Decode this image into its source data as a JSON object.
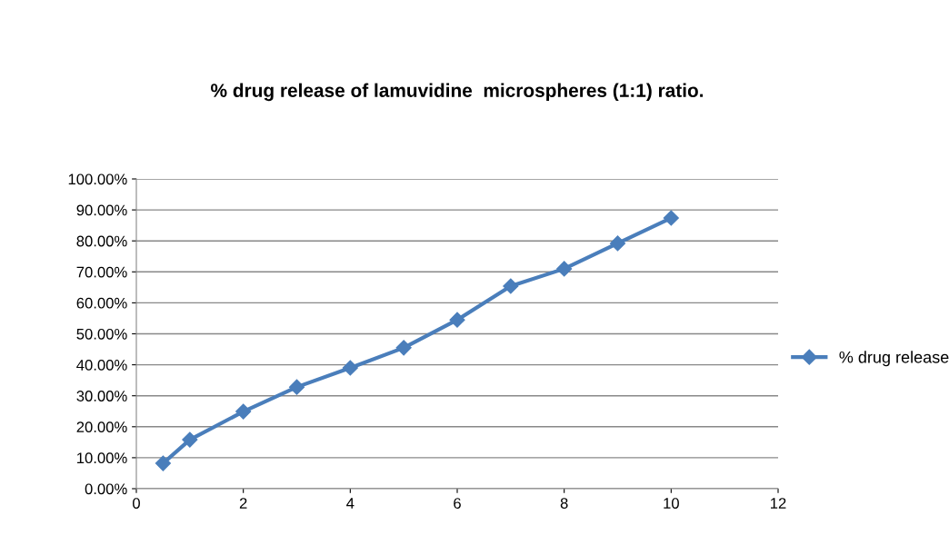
{
  "chart_data": {
    "type": "line",
    "title": "% drug release of lamuvidine  microspheres (1:1) ratio.",
    "x": [
      0.5,
      1,
      2,
      3,
      4,
      5,
      6,
      7,
      8,
      9,
      10
    ],
    "series": [
      {
        "name": "% drug release",
        "color": "#4a7ebb",
        "values": [
          8.2,
          15.8,
          24.9,
          32.8,
          39.0,
          45.5,
          54.5,
          65.4,
          71.0,
          79.2,
          87.4
        ]
      }
    ],
    "xlim": [
      0,
      12
    ],
    "xticks": [
      0,
      2,
      4,
      6,
      8,
      10,
      12
    ],
    "ylim": [
      0,
      100
    ],
    "yticks": [
      {
        "value": 0,
        "label": "0.00%"
      },
      {
        "value": 10,
        "label": "10.00%"
      },
      {
        "value": 20,
        "label": "20.00%"
      },
      {
        "value": 30,
        "label": "30.00%"
      },
      {
        "value": 40,
        "label": "40.00%"
      },
      {
        "value": 50,
        "label": "50.00%"
      },
      {
        "value": 60,
        "label": "60.00%"
      },
      {
        "value": 70,
        "label": "70.00%"
      },
      {
        "value": 80,
        "label": "80.00%"
      },
      {
        "value": 90,
        "label": "90.00%"
      },
      {
        "value": 100,
        "label": "100.00%"
      }
    ],
    "grid": "y",
    "legend": "right",
    "marker": "diamond",
    "line_style": "solid"
  }
}
